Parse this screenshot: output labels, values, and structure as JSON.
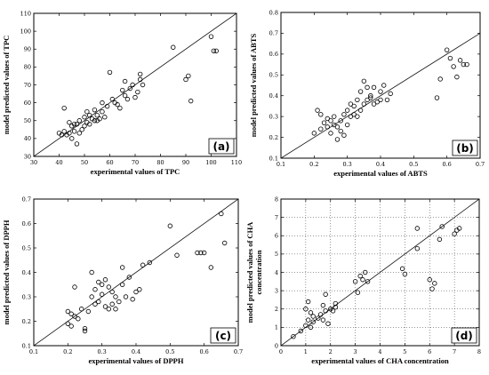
{
  "chart_data": [
    {
      "type": "scatter",
      "panel_label": "(a)",
      "xlabel": "experimental values of TPC",
      "ylabel": "model predicted values of TPC",
      "xlim": [
        30,
        110
      ],
      "ylim": [
        30,
        110
      ],
      "xticks": [
        30,
        40,
        50,
        60,
        70,
        80,
        90,
        100,
        110
      ],
      "yticks": [
        30,
        40,
        50,
        60,
        70,
        80,
        90,
        100,
        110
      ],
      "tick_decimals": 0,
      "fit_line": [
        [
          30,
          30
        ],
        [
          110,
          110
        ]
      ],
      "grid": false,
      "x": [
        40,
        41,
        42,
        42,
        43,
        44,
        44,
        45,
        45,
        46,
        46,
        47,
        47,
        48,
        48,
        49,
        50,
        50,
        51,
        51,
        52,
        52,
        53,
        54,
        54,
        55,
        55,
        56,
        57,
        57,
        58,
        59,
        60,
        61,
        62,
        63,
        64,
        65,
        66,
        66,
        67,
        68,
        69,
        70,
        71,
        72,
        72,
        73,
        85,
        90,
        91,
        92,
        100,
        101,
        102
      ],
      "y": [
        43,
        42,
        57,
        44,
        42,
        49,
        43,
        47,
        40,
        48,
        44,
        48,
        37,
        50,
        43,
        45,
        47,
        52,
        55,
        49,
        53,
        48,
        51,
        56,
        50,
        50,
        53,
        51,
        60,
        55,
        52,
        58,
        77,
        62,
        60,
        59,
        57,
        67,
        72,
        64,
        62,
        68,
        70,
        63,
        66,
        73,
        76,
        70,
        91,
        73,
        75,
        61,
        97,
        89,
        89
      ]
    },
    {
      "type": "scatter",
      "panel_label": "(b)",
      "xlabel": "experimental values of ABTS",
      "ylabel": "model predicted values of ABTS",
      "xlim": [
        0.1,
        0.7
      ],
      "ylim": [
        0.1,
        0.8
      ],
      "xticks": [
        0.1,
        0.2,
        0.3,
        0.4,
        0.5,
        0.6,
        0.7
      ],
      "yticks": [
        0.1,
        0.2,
        0.3,
        0.4,
        0.5,
        0.6,
        0.7,
        0.8
      ],
      "tick_decimals": 1,
      "fit_line": [
        [
          0.1,
          0.1
        ],
        [
          0.7,
          0.7
        ]
      ],
      "grid": false,
      "x": [
        0.2,
        0.21,
        0.22,
        0.22,
        0.23,
        0.24,
        0.24,
        0.25,
        0.25,
        0.26,
        0.26,
        0.27,
        0.27,
        0.28,
        0.28,
        0.29,
        0.29,
        0.3,
        0.3,
        0.31,
        0.31,
        0.32,
        0.32,
        0.33,
        0.33,
        0.34,
        0.34,
        0.35,
        0.35,
        0.36,
        0.36,
        0.37,
        0.37,
        0.38,
        0.38,
        0.39,
        0.4,
        0.4,
        0.41,
        0.42,
        0.43,
        0.57,
        0.58,
        0.6,
        0.61,
        0.62,
        0.63,
        0.64,
        0.65,
        0.66
      ],
      "y": [
        0.22,
        0.33,
        0.24,
        0.31,
        0.27,
        0.25,
        0.29,
        0.22,
        0.28,
        0.26,
        0.3,
        0.19,
        0.25,
        0.28,
        0.23,
        0.31,
        0.21,
        0.26,
        0.33,
        0.3,
        0.36,
        0.35,
        0.31,
        0.38,
        0.3,
        0.33,
        0.42,
        0.47,
        0.36,
        0.44,
        0.38,
        0.39,
        0.4,
        0.36,
        0.44,
        0.37,
        0.42,
        0.38,
        0.45,
        0.38,
        0.41,
        0.39,
        0.48,
        0.62,
        0.58,
        0.54,
        0.49,
        0.57,
        0.55,
        0.55
      ]
    },
    {
      "type": "scatter",
      "panel_label": "(c)",
      "xlabel": "experimental values of DPPH",
      "ylabel": "model predicted values of DPPH",
      "xlim": [
        0.1,
        0.7
      ],
      "ylim": [
        0.1,
        0.7
      ],
      "xticks": [
        0.1,
        0.2,
        0.3,
        0.4,
        0.5,
        0.6,
        0.7
      ],
      "yticks": [
        0.1,
        0.2,
        0.3,
        0.4,
        0.5,
        0.6,
        0.7
      ],
      "tick_decimals": 1,
      "fit_line": [
        [
          0.1,
          0.1
        ],
        [
          0.7,
          0.7
        ]
      ],
      "grid": false,
      "x": [
        0.2,
        0.2,
        0.21,
        0.21,
        0.22,
        0.22,
        0.23,
        0.24,
        0.25,
        0.25,
        0.26,
        0.27,
        0.27,
        0.28,
        0.28,
        0.29,
        0.29,
        0.3,
        0.3,
        0.31,
        0.31,
        0.32,
        0.32,
        0.33,
        0.33,
        0.34,
        0.34,
        0.35,
        0.36,
        0.36,
        0.37,
        0.38,
        0.39,
        0.4,
        0.41,
        0.42,
        0.44,
        0.5,
        0.52,
        0.58,
        0.59,
        0.6,
        0.62,
        0.65,
        0.66
      ],
      "y": [
        0.24,
        0.19,
        0.23,
        0.18,
        0.34,
        0.22,
        0.21,
        0.25,
        0.17,
        0.16,
        0.24,
        0.3,
        0.4,
        0.33,
        0.27,
        0.36,
        0.28,
        0.35,
        0.31,
        0.37,
        0.26,
        0.34,
        0.25,
        0.32,
        0.27,
        0.3,
        0.25,
        0.28,
        0.35,
        0.42,
        0.3,
        0.38,
        0.29,
        0.32,
        0.33,
        0.43,
        0.44,
        0.59,
        0.47,
        0.48,
        0.48,
        0.48,
        0.42,
        0.64,
        0.52
      ]
    },
    {
      "type": "scatter",
      "panel_label": "(d)",
      "xlabel": "experimental values of CHA concentration",
      "ylabel": "model predicted values of CHA concentration",
      "xlim": [
        0,
        8
      ],
      "ylim": [
        0,
        8
      ],
      "xticks": [
        0,
        1,
        2,
        3,
        4,
        5,
        6,
        7,
        8
      ],
      "yticks": [
        0,
        1,
        2,
        3,
        4,
        5,
        6,
        7,
        8
      ],
      "tick_decimals": 0,
      "fit_line": [
        [
          0,
          0
        ],
        [
          8,
          8
        ]
      ],
      "grid": true,
      "x": [
        0.5,
        0.8,
        1.0,
        1.0,
        1.1,
        1.1,
        1.2,
        1.2,
        1.3,
        1.3,
        1.5,
        1.6,
        1.7,
        1.7,
        1.8,
        1.8,
        1.9,
        2.0,
        2.1,
        2.2,
        2.2,
        3.0,
        3.1,
        3.2,
        3.3,
        3.4,
        3.5,
        4.9,
        5.0,
        5.5,
        5.5,
        6.0,
        6.1,
        6.2,
        6.4,
        6.5,
        7.0,
        7.1,
        7.2
      ],
      "y": [
        0.5,
        0.8,
        1.1,
        2.0,
        1.4,
        2.4,
        1.0,
        1.8,
        1.6,
        1.3,
        1.5,
        1.7,
        2.2,
        1.4,
        1.9,
        2.8,
        1.2,
        2.0,
        1.9,
        2.3,
        2.1,
        3.5,
        2.9,
        3.8,
        3.6,
        4.0,
        3.5,
        4.2,
        3.9,
        5.3,
        6.4,
        3.6,
        3.1,
        3.4,
        5.8,
        6.5,
        6.1,
        6.3,
        6.4
      ]
    }
  ]
}
